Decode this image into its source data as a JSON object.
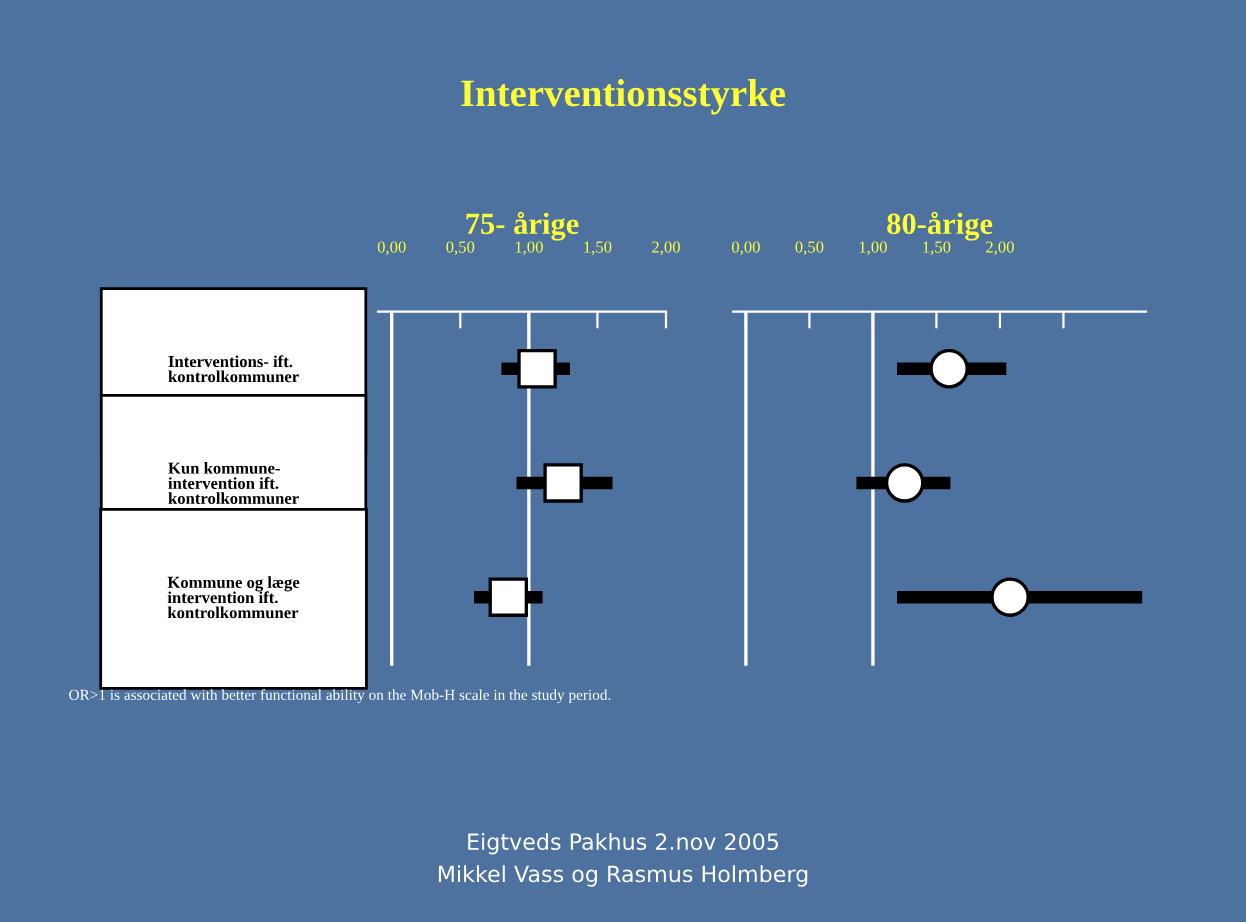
{
  "chart_data": [
    {
      "type": "scatter",
      "orientation": "horizontal",
      "title": "75- årige",
      "categories": [
        "Interventions- ift.\nkontrolkommuner",
        "Kun kommune-\nintervention ift.\nkontrolkommuner",
        "Kommune og læge\nintervention ift.\nkontrolkommuner"
      ],
      "values": [
        1.06,
        1.25,
        0.85
      ],
      "errors": [
        [
          0.8,
          1.3
        ],
        [
          0.91,
          1.61
        ],
        [
          0.6,
          1.1
        ]
      ],
      "color": "#ffffff",
      "marker": "square",
      "xlim": [
        -0.1,
        2.0
      ],
      "xticks": [
        {
          "value": 0,
          "label": "0,00"
        },
        {
          "value": 0.5,
          "label": "0,50"
        },
        {
          "value": 1,
          "label": "1,00"
        },
        {
          "value": 1.5,
          "label": "1,50"
        },
        {
          "value": 2,
          "label": "2,00"
        }
      ],
      "ref_lines": [
        {
          "axis": "x",
          "value": 0,
          "color": "#ffffff"
        },
        {
          "axis": "x",
          "value": 1,
          "color": "#ffffff"
        }
      ],
      "grid": false,
      "annotations": [
        "Interventionsstyrke",
        "OR>1 is associated with better functional ability on the Mob-H scale in the study period.",
        "Eigtveds Pakhus 2.nov 2005",
        "Mikkel Vass og Rasmus Holmberg"
      ]
    },
    {
      "type": "scatter",
      "orientation": "horizontal",
      "title": "80-årige",
      "values": [
        1.6,
        1.25,
        2.08
      ],
      "errors": [
        [
          1.19,
          2.05
        ],
        [
          0.87,
          1.61
        ],
        [
          1.19,
          3.12
        ]
      ],
      "color": "#ffffff",
      "marker": "circle",
      "xlim": [
        -0.1,
        3.15
      ],
      "xticks": [
        {
          "value": 0,
          "label": "0,00"
        },
        {
          "value": 0.5,
          "label": "0,50"
        },
        {
          "value": 1,
          "label": "1,00"
        },
        {
          "value": 1.5,
          "label": "1,50"
        },
        {
          "value": 2,
          "label": "2,00"
        },
        {
          "value": 2.5,
          "label": null
        }
      ],
      "ref_lines": [
        {
          "axis": "x",
          "value": 0,
          "color": "#ffffff"
        },
        {
          "axis": "x",
          "value": 1,
          "color": "#ffffff"
        }
      ],
      "grid": false
    }
  ]
}
